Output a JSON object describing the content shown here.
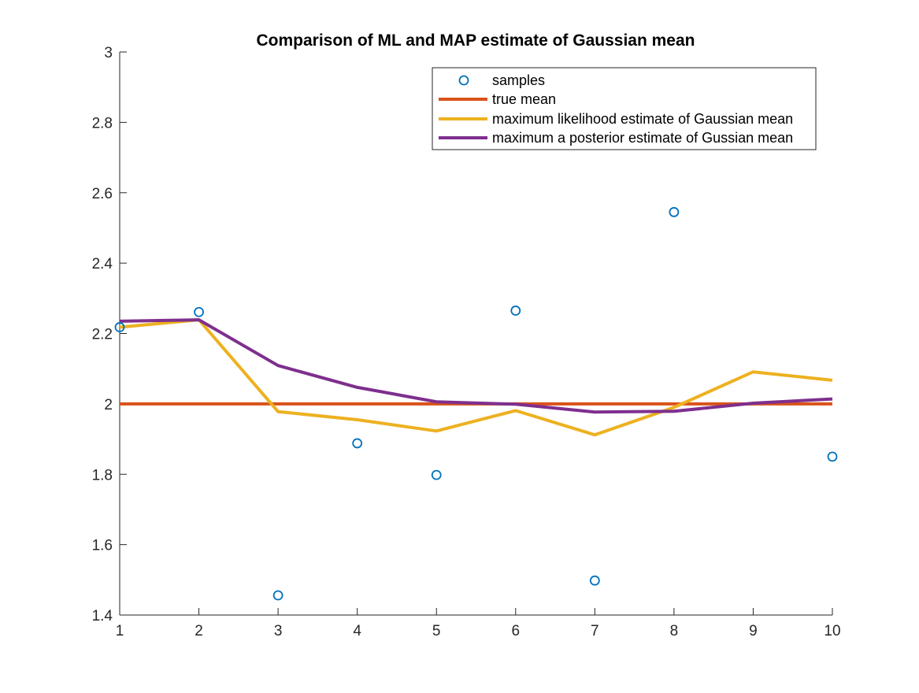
{
  "chart_data": {
    "type": "line",
    "title": "Comparison of ML and MAP estimate of Gaussian mean",
    "xlabel": "",
    "ylabel": "",
    "xlim": [
      1,
      10
    ],
    "ylim": [
      1.4,
      3
    ],
    "xticks": [
      1,
      2,
      3,
      4,
      5,
      6,
      7,
      8,
      9,
      10
    ],
    "xtick_labels": [
      "1",
      "2",
      "3",
      "4",
      "5",
      "6",
      "7",
      "8",
      "9",
      "10"
    ],
    "yticks": [
      1.4,
      1.6,
      1.8,
      2,
      2.2,
      2.4,
      2.6,
      2.8,
      3
    ],
    "ytick_labels": [
      "1.4",
      "1.6",
      "1.8",
      "2",
      "2.2",
      "2.4",
      "2.6",
      "2.8",
      "3"
    ],
    "grid": false,
    "legend_position": "top-right",
    "series": [
      {
        "name": "samples",
        "kind": "scatter",
        "color": "#0072BD",
        "x": [
          1,
          2,
          3,
          4,
          5,
          6,
          7,
          8,
          9,
          10
        ],
        "y": [
          2.218,
          2.261,
          1.456,
          1.888,
          1.798,
          2.265,
          1.498,
          2.545,
          null,
          1.85
        ]
      },
      {
        "name": "true mean",
        "kind": "line",
        "color": "#D95319",
        "x": [
          1,
          10
        ],
        "y": [
          2.0,
          2.0
        ]
      },
      {
        "name": "maximum likelihood estimate of Gaussian mean",
        "kind": "line",
        "color": "#EDB120",
        "x": [
          1,
          2,
          3,
          4,
          5,
          6,
          7,
          8,
          9,
          10
        ],
        "y": [
          2.218,
          2.239,
          1.978,
          1.955,
          1.923,
          1.981,
          1.912,
          1.99,
          2.091,
          2.067
        ]
      },
      {
        "name": "maximum a posterior estimate of Gussian mean",
        "kind": "line",
        "color": "#7E2F8E",
        "x": [
          1,
          2,
          3,
          4,
          5,
          6,
          7,
          8,
          9,
          10
        ],
        "y": [
          2.235,
          2.239,
          2.109,
          2.047,
          2.006,
          1.999,
          1.977,
          1.979,
          2.002,
          2.014
        ]
      }
    ]
  }
}
